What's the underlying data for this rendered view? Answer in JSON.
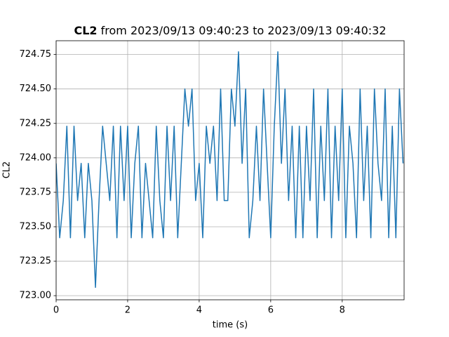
{
  "chart_data": {
    "type": "line",
    "title_bold": "CL2",
    "title": "from 2023/09/13 09:40:23 to 2023/09/13 09:40:32",
    "xlabel": "time (s)",
    "ylabel": "CL2",
    "color": "#1f77b4",
    "grid": true,
    "xlim": [
      0,
      9.73
    ],
    "ylim": [
      722.97,
      724.85
    ],
    "xticks": [
      0,
      2,
      4,
      6,
      8
    ],
    "yticks": [
      {
        "value": 723,
        "label": "723.00"
      },
      {
        "value": 723.25,
        "label": "723.25"
      },
      {
        "value": 723.5,
        "label": "723.50"
      },
      {
        "value": 723.75,
        "label": "723.75"
      },
      {
        "value": 724,
        "label": "724.00"
      },
      {
        "value": 724.25,
        "label": "724.25"
      },
      {
        "value": 724.5,
        "label": "724.50"
      },
      {
        "value": 724.75,
        "label": "724.75"
      }
    ],
    "x": [
      0,
      0.1,
      0.2,
      0.3,
      0.4,
      0.5,
      0.6,
      0.7,
      0.8,
      0.9,
      1,
      1.1,
      1.2,
      1.3,
      1.4,
      1.5,
      1.6,
      1.7,
      1.8,
      1.9,
      2,
      2.1,
      2.2,
      2.3,
      2.4,
      2.5,
      2.6,
      2.7,
      2.8,
      2.9,
      3,
      3.1,
      3.2,
      3.3,
      3.4,
      3.5,
      3.6,
      3.7,
      3.8,
      3.9,
      4,
      4.1,
      4.2,
      4.3,
      4.4,
      4.5,
      4.6,
      4.7,
      4.8,
      4.9,
      5,
      5.1,
      5.2,
      5.3,
      5.4,
      5.5,
      5.6,
      5.7,
      5.8,
      5.9,
      6,
      6.1,
      6.2,
      6.3,
      6.4,
      6.5,
      6.6,
      6.7,
      6.8,
      6.9,
      7,
      7.1,
      7.2,
      7.3,
      7.4,
      7.5,
      7.6,
      7.7,
      7.8,
      7.9,
      8,
      8.1,
      8.2,
      8.3,
      8.4,
      8.5,
      8.6,
      8.7,
      8.8,
      8.9,
      9,
      9.1,
      9.2,
      9.3,
      9.4,
      9.5,
      9.6,
      9.7
    ],
    "values": [
      723.96,
      723.42,
      723.69,
      724.23,
      723.42,
      724.23,
      723.69,
      723.96,
      723.42,
      723.96,
      723.69,
      723.06,
      723.69,
      724.23,
      723.96,
      723.69,
      724.23,
      723.42,
      724.23,
      723.69,
      724.23,
      723.42,
      723.96,
      724.23,
      723.42,
      723.96,
      723.69,
      723.42,
      724.23,
      723.69,
      723.42,
      724.23,
      723.69,
      724.23,
      723.42,
      723.96,
      724.5,
      724.23,
      724.5,
      723.69,
      723.96,
      723.42,
      724.23,
      723.96,
      724.23,
      723.69,
      724.5,
      723.69,
      723.69,
      724.5,
      724.23,
      724.77,
      723.96,
      724.5,
      723.42,
      723.69,
      724.23,
      723.69,
      724.5,
      723.96,
      723.42,
      724.23,
      724.77,
      723.96,
      724.5,
      723.69,
      724.23,
      723.42,
      724.23,
      723.42,
      724.23,
      723.69,
      724.5,
      723.42,
      724.23,
      723.69,
      724.5,
      723.42,
      724.23,
      723.69,
      724.5,
      723.42,
      724.23,
      723.96,
      723.42,
      724.5,
      723.69,
      724.23,
      723.42,
      724.5,
      723.96,
      723.69,
      724.5,
      723.42,
      724.23,
      723.42,
      724.5,
      723.96
    ]
  }
}
